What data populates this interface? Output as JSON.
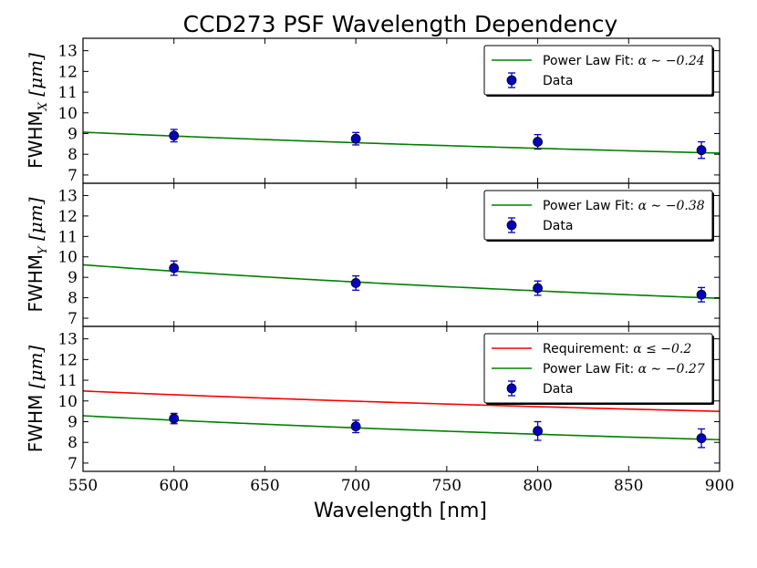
{
  "chart_data": {
    "type": "scatter",
    "title": "CCD273 PSF Wavelength Dependency",
    "xlabel": "Wavelength [nm]",
    "xlim": [
      550,
      900
    ],
    "xticks": [
      550,
      600,
      650,
      700,
      750,
      800,
      850,
      900
    ],
    "panels": [
      {
        "id": "x",
        "ylabel_base": "FWHM",
        "ylabel_sub": "X",
        "ylabel_unit": "[μm]",
        "ylim": [
          6.6,
          13.6
        ],
        "yticks": [
          7,
          8,
          9,
          10,
          11,
          12,
          13
        ],
        "legend_loc": "upper right",
        "series": [
          {
            "kind": "fit",
            "name": "Power Law Fit: α ∼ −0.24",
            "label_text": "Power Law Fit: ",
            "label_math": "α ∼ −0.24",
            "color": "#008000",
            "amplitude": 8.88,
            "ref": 600,
            "alpha": -0.24
          },
          {
            "kind": "data",
            "name": "Data",
            "label_text": "Data",
            "color": "#0000bf",
            "x": [
              600,
              700,
              800,
              890
            ],
            "y": [
              8.9,
              8.75,
              8.6,
              8.2
            ],
            "yerr": [
              0.3,
              0.3,
              0.35,
              0.4
            ]
          }
        ]
      },
      {
        "id": "y",
        "ylabel_base": "FWHM",
        "ylabel_sub": "Y",
        "ylabel_unit": "[μm]",
        "ylim": [
          6.6,
          13.6
        ],
        "yticks": [
          7,
          8,
          9,
          10,
          11,
          12,
          13
        ],
        "legend_loc": "upper right",
        "series": [
          {
            "kind": "fit",
            "name": "Power Law Fit: α ∼ −0.38",
            "label_text": "Power Law Fit: ",
            "label_math": "α ∼ −0.38",
            "color": "#008000",
            "amplitude": 9.3,
            "ref": 600,
            "alpha": -0.38
          },
          {
            "kind": "data",
            "name": "Data",
            "label_text": "Data",
            "color": "#0000bf",
            "x": [
              600,
              700,
              800,
              890
            ],
            "y": [
              9.45,
              8.72,
              8.47,
              8.15
            ],
            "yerr": [
              0.35,
              0.35,
              0.35,
              0.35
            ]
          }
        ]
      },
      {
        "id": "combined",
        "ylabel_base": "FWHM",
        "ylabel_sub": "",
        "ylabel_unit": "[μm]",
        "ylim": [
          6.6,
          13.6
        ],
        "yticks": [
          7,
          8,
          9,
          10,
          11,
          12,
          13
        ],
        "legend_loc": "upper right",
        "series": [
          {
            "kind": "fit",
            "name": "Requirement: α ≤ −0.2",
            "label_text": "Requirement: ",
            "label_math": "α ≤ −0.2",
            "color": "#ff0000",
            "amplitude": 10.3,
            "ref": 600,
            "alpha": -0.2
          },
          {
            "kind": "fit",
            "name": "Power Law Fit: α ∼ −0.27",
            "label_text": "Power Law Fit: ",
            "label_math": "α ∼ −0.27",
            "color": "#008000",
            "amplitude": 9.07,
            "ref": 600,
            "alpha": -0.27
          },
          {
            "kind": "data",
            "name": "Data",
            "label_text": "Data",
            "color": "#0000bf",
            "x": [
              600,
              700,
              800,
              890
            ],
            "y": [
              9.15,
              8.77,
              8.55,
              8.2
            ],
            "yerr": [
              0.25,
              0.3,
              0.45,
              0.45
            ]
          }
        ]
      }
    ]
  }
}
